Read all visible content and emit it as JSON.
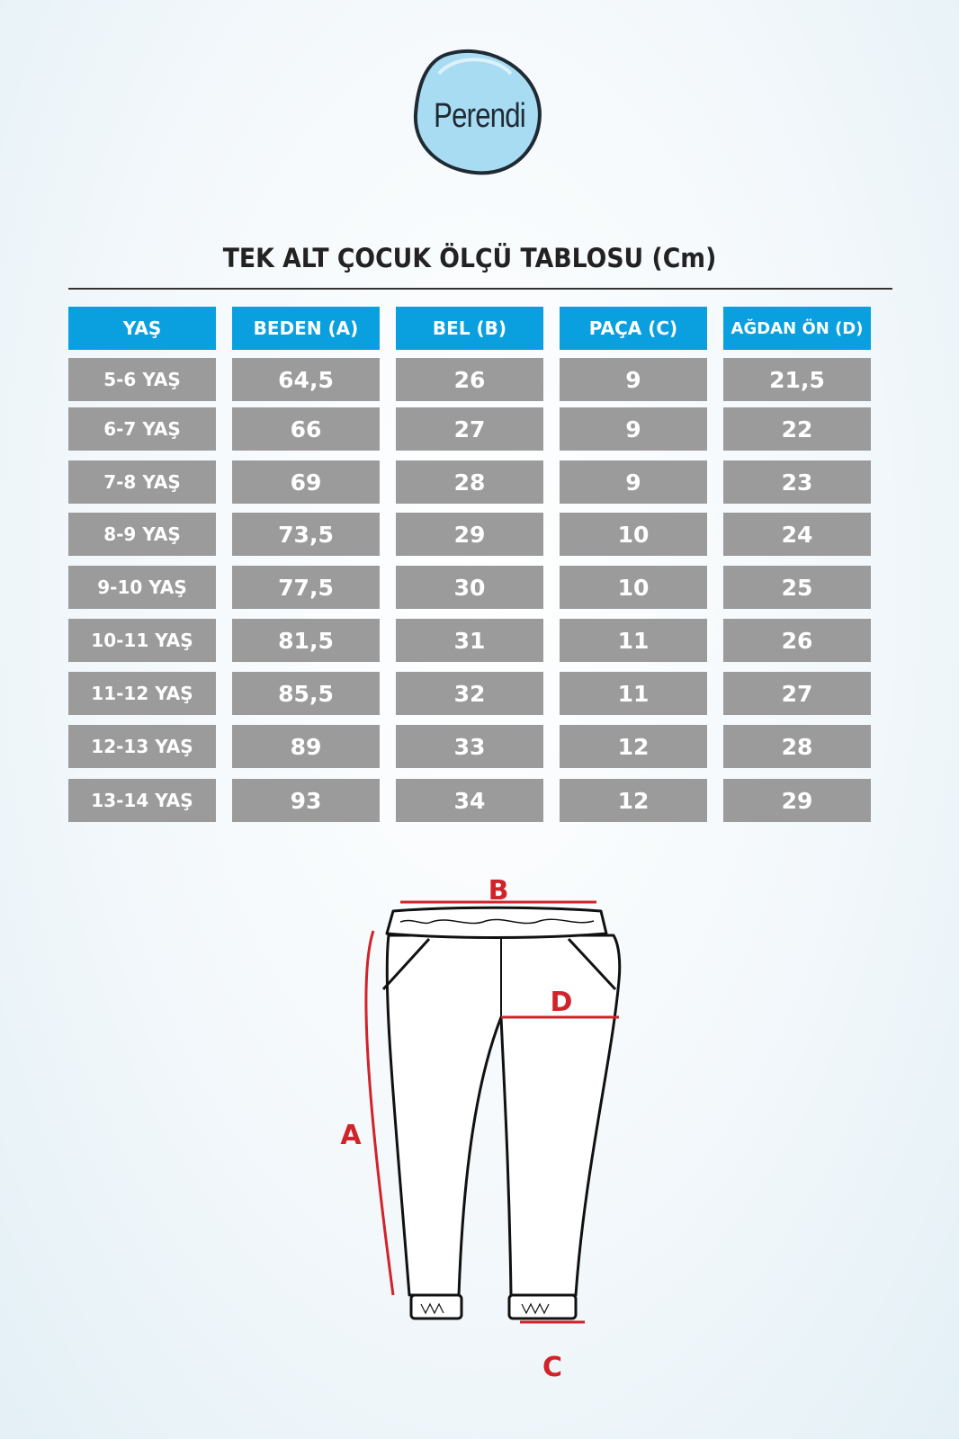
{
  "brand": {
    "logo_text": "Perendi",
    "accent": "#0aa0e0"
  },
  "title": "TEK ALT ÇOCUK ÖLÇÜ TABLOSU (Cm)",
  "table": {
    "headers": [
      "YAŞ",
      "BEDEN (A)",
      "BEL (B)",
      "PAÇA (C)",
      "AĞDAN ÖN (D)"
    ],
    "rows": [
      [
        "5-6 YAŞ",
        "64,5",
        "26",
        "9",
        "21,5"
      ],
      [
        "6-7 YAŞ",
        "66",
        "27",
        "9",
        "22"
      ],
      [
        "7-8 YAŞ",
        "69",
        "28",
        "9",
        "23"
      ],
      [
        "8-9 YAŞ",
        "73,5",
        "29",
        "10",
        "24"
      ],
      [
        "9-10 YAŞ",
        "77,5",
        "30",
        "10",
        "25"
      ],
      [
        "10-11 YAŞ",
        "81,5",
        "31",
        "11",
        "26"
      ],
      [
        "11-12 YAŞ",
        "85,5",
        "32",
        "11",
        "27"
      ],
      [
        "12-13 YAŞ",
        "89",
        "33",
        "12",
        "28"
      ],
      [
        "13-14 YAŞ",
        "93",
        "34",
        "12",
        "29"
      ]
    ],
    "header_color": "#0aa0e0",
    "cell_color": "#9b9b9b"
  },
  "diagram": {
    "labels": {
      "a": "A",
      "b": "B",
      "c": "C",
      "d": "D"
    },
    "measure_color": "#d0232a"
  }
}
